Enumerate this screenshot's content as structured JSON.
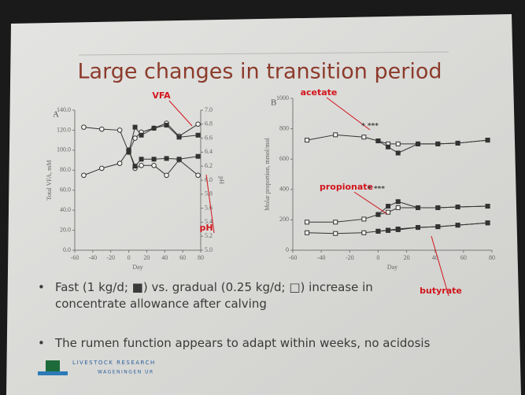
{
  "slide": {
    "title": "Large changes in transition period",
    "bullets": [
      "Fast (1 kg/d; ■) vs. gradual (0.25 kg/d; □) increase in concentrate allowance after calving",
      "The rumen function appears to adapt within weeks, no acidosis"
    ],
    "logo": {
      "line1": "LIVESTOCK RESEARCH",
      "line2": "WAGENINGEN UR"
    }
  },
  "chart_data": [
    {
      "type": "line",
      "panel": "A",
      "ylabel": "Total VFA, mM",
      "y2label": "pH",
      "xlabel": "Day",
      "xlim": [
        -60,
        80
      ],
      "xticks": [
        -60,
        -40,
        -20,
        0,
        20,
        40,
        60,
        80
      ],
      "ylim": [
        0,
        140
      ],
      "yticks": [
        {
          "value": 0,
          "label": "0.0"
        },
        {
          "value": 20,
          "label": "20.0"
        },
        {
          "value": 40,
          "label": "40.0"
        },
        {
          "value": 60,
          "label": "60.0"
        },
        {
          "value": 80,
          "label": "80.0"
        },
        {
          "value": 100,
          "label": "100.0"
        },
        {
          "value": 120,
          "label": "120.0"
        },
        {
          "value": 140,
          "label": "140.0"
        }
      ],
      "y2lim": [
        5.0,
        7.0
      ],
      "y2ticks": [
        {
          "value": 5.0,
          "label": "5.0"
        },
        5.2,
        5.4,
        5.6,
        5.8,
        {
          "value": 6.0,
          "label": "6.0"
        },
        6.2,
        6.4,
        6.6,
        6.8,
        {
          "value": 7.0,
          "label": "7.0"
        }
      ],
      "x": [
        -50,
        -30,
        -10,
        0,
        7,
        14,
        28,
        42,
        56,
        77
      ],
      "series": [
        {
          "color": "#333333",
          "marker": "open",
          "values": [
            123,
            121,
            120,
            98,
            112,
            118,
            122,
            127,
            114,
            126
          ]
        },
        {
          "color": "#333333",
          "marker": "filled",
          "values": [
            null,
            null,
            null,
            98,
            123,
            115,
            122,
            125,
            113,
            115
          ]
        },
        {
          "color": "#333333",
          "marker": "open",
          "axis": "y2",
          "values": [
            6.07,
            6.17,
            6.24,
            6.43,
            6.17,
            6.21,
            6.21,
            6.07,
            6.29,
            6.07
          ]
        },
        {
          "color": "#333333",
          "marker": "filled",
          "axis": "y2",
          "values": [
            null,
            null,
            null,
            6.43,
            6.2,
            6.3,
            6.3,
            6.31,
            6.3,
            6.34
          ]
        }
      ],
      "annotations": [
        "VFA",
        "pH"
      ]
    },
    {
      "type": "line",
      "panel": "B",
      "ylabel": "Molar proportion, mmol/mol",
      "xlabel": "Day",
      "xlim": [
        -60,
        80
      ],
      "xticks": [
        -60,
        -40,
        -20,
        0,
        20,
        40,
        60,
        80
      ],
      "ylim": [
        0,
        1000
      ],
      "yticks": [
        0,
        200,
        400,
        600,
        800,
        1000
      ],
      "x": [
        -50,
        -30,
        -10,
        0,
        7,
        14,
        28,
        42,
        56,
        77
      ],
      "series": [
        {
          "color": "#333333",
          "marker": "open",
          "values": [
            725,
            760,
            745,
            720,
            700,
            700,
            700,
            700,
            705,
            725
          ]
        },
        {
          "color": "#333333",
          "marker": "filled",
          "values": [
            null,
            null,
            null,
            720,
            680,
            640,
            700,
            700,
            705,
            725
          ]
        },
        {
          "color": "#333333",
          "marker": "open",
          "values": [
            185,
            185,
            205,
            235,
            250,
            280,
            280,
            280,
            285,
            290
          ]
        },
        {
          "color": "#333333",
          "marker": "filled",
          "values": [
            null,
            null,
            null,
            235,
            290,
            320,
            280,
            280,
            285,
            290
          ]
        },
        {
          "color": "#333333",
          "marker": "open",
          "values": [
            115,
            110,
            115,
            125,
            130,
            135,
            150,
            155,
            165,
            180
          ]
        },
        {
          "color": "#333333",
          "marker": "filled",
          "values": [
            null,
            null,
            null,
            125,
            132,
            140,
            150,
            155,
            165,
            180
          ]
        }
      ],
      "annotations": [
        "acetate",
        "propionate",
        "butyrate",
        "* ***",
        "* ***"
      ]
    }
  ]
}
